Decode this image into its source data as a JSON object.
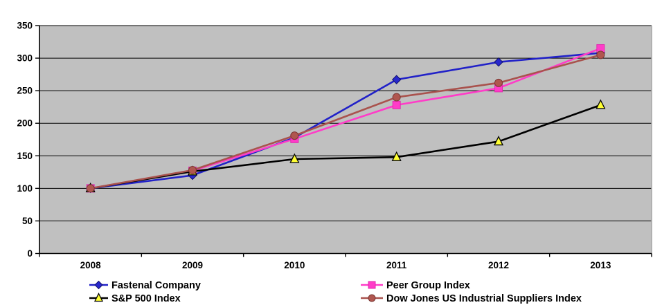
{
  "chart_data": {
    "type": "line",
    "title": "",
    "xlabel": "",
    "ylabel": "",
    "categories": [
      "2008",
      "2009",
      "2010",
      "2011",
      "2012",
      "2013"
    ],
    "series": [
      {
        "name": "Fastenal Company",
        "color": "#2121c8",
        "marker": "diamond",
        "marker_fill": "#2828cc",
        "marker_stroke": "#10106e",
        "values": [
          100,
          120,
          178,
          267,
          294,
          308
        ]
      },
      {
        "name": "Peer Group Index",
        "color": "#ff3cc8",
        "marker": "square",
        "marker_fill": "#ff3cc8",
        "marker_stroke": "#e02aae",
        "values": [
          100,
          127,
          176,
          228,
          254,
          315
        ]
      },
      {
        "name": "S&P 500 Index",
        "color": "#000000",
        "marker": "triangle",
        "marker_fill": "#ffff33",
        "marker_stroke": "#000000",
        "values": [
          100,
          126,
          145,
          148,
          172,
          228
        ]
      },
      {
        "name": "Dow Jones US Industrial Suppliers Index",
        "color": "#a9524d",
        "marker": "circle",
        "marker_fill": "#b0564f",
        "marker_stroke": "#7a3734",
        "values": [
          100,
          128,
          181,
          240,
          262,
          305
        ]
      }
    ],
    "ylim": [
      0,
      350
    ],
    "ytick_interval": 50,
    "yticks": [
      0,
      50,
      100,
      150,
      200,
      250,
      300,
      350
    ],
    "grid": "horizontal",
    "gridline_color": "#000000",
    "plot_bg": "#c0c0c0",
    "plot_right_edge_color": "#a6a6a6",
    "axis_color": "#000000",
    "legend_position": "bottom",
    "legend_columns": [
      [
        0,
        2
      ],
      [
        1,
        3
      ]
    ]
  }
}
